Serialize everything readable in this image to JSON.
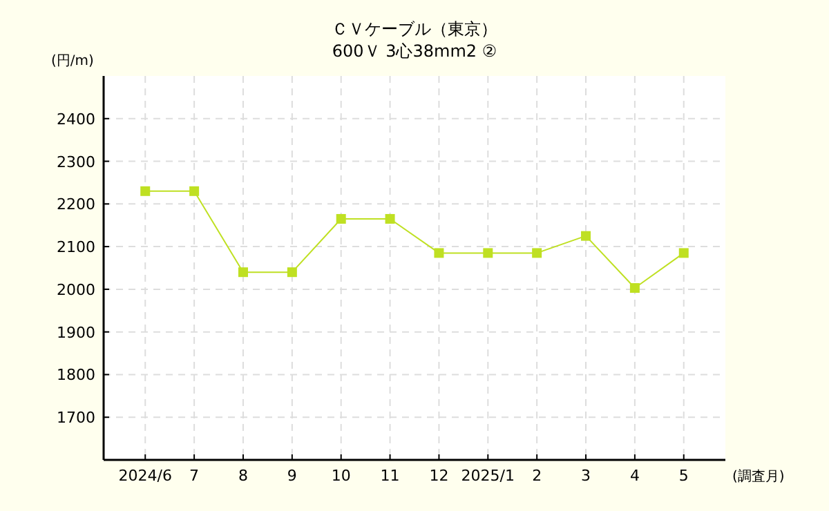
{
  "chart_data": {
    "type": "line",
    "title": "ＣＶケーブル（東京）",
    "subtitle": "600Ｖ 3心38mm2 ②",
    "ylabel": "(円/m)",
    "xlabel": "(調査月)",
    "categories": [
      "2024/6",
      "7",
      "8",
      "9",
      "10",
      "11",
      "12",
      "2025/1",
      "2",
      "3",
      "4",
      "5"
    ],
    "series": [
      {
        "color": "#bfe022",
        "values": [
          2230,
          2230,
          2040,
          2040,
          2165,
          2165,
          2085,
          2085,
          2085,
          2125,
          2003,
          2085
        ]
      }
    ],
    "ylim": [
      1600,
      2500
    ],
    "yticks": [
      {
        "value": 1600,
        "label": null
      },
      1700,
      1800,
      1900,
      2000,
      2100,
      2200,
      2300,
      2400
    ],
    "grid": true,
    "marker": "square",
    "line_style": "solid"
  }
}
